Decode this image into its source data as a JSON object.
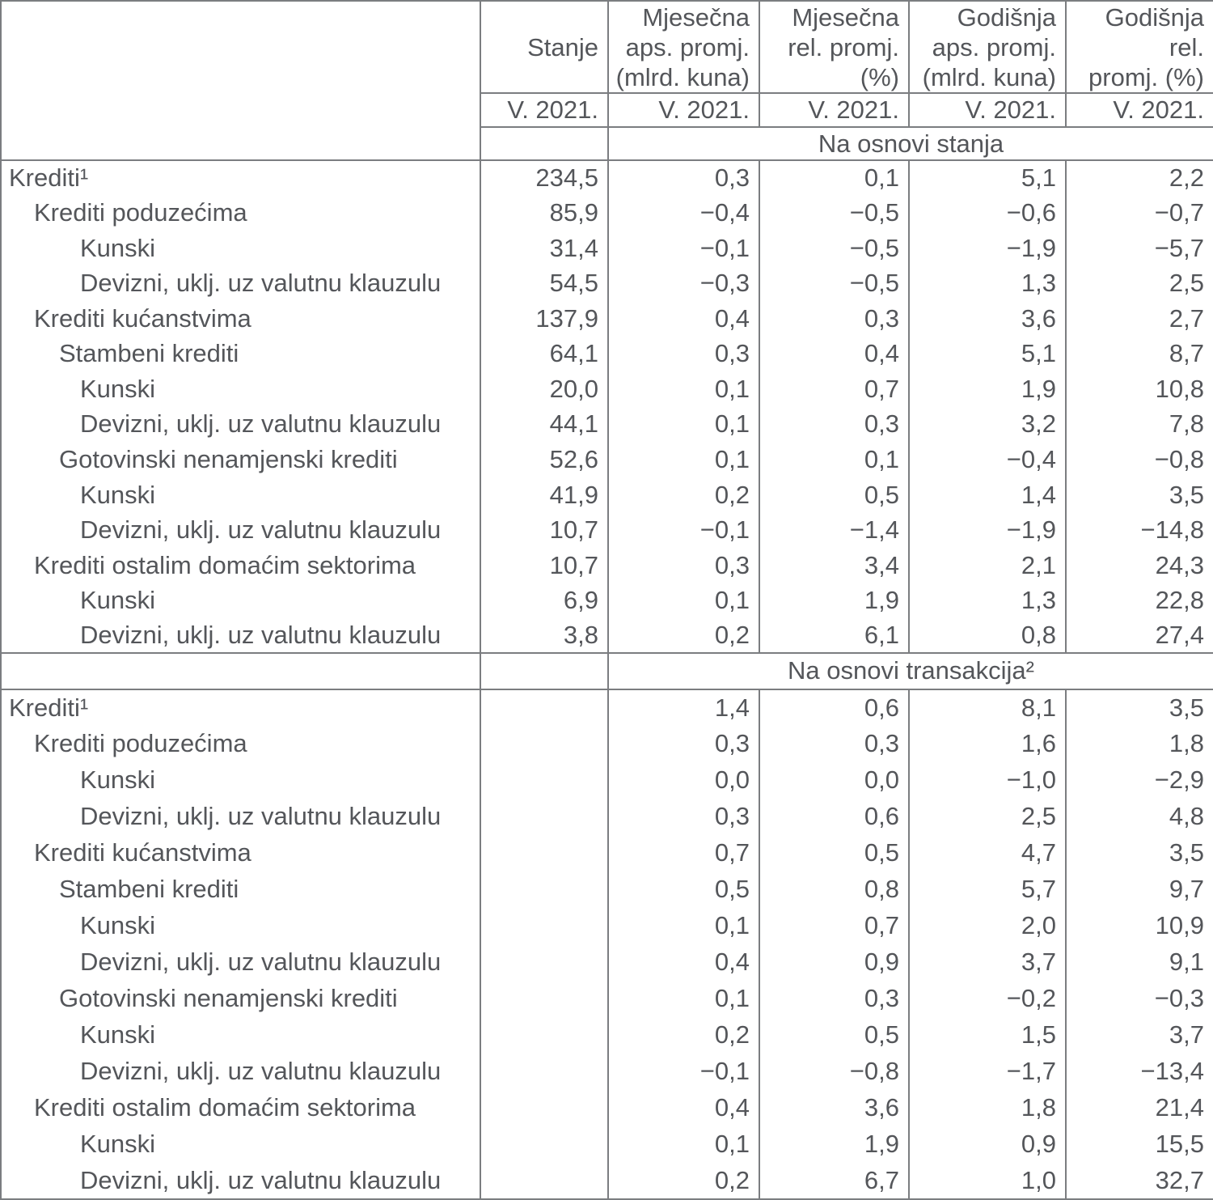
{
  "colors": {
    "text": "#54565a",
    "border": "#7b7d80",
    "background": "#ffffff"
  },
  "table": {
    "columns": [
      {
        "title": "Stanje",
        "period": "V. 2021."
      },
      {
        "title": "Mjesečna\naps. promj.\n(mlrd. kuna)",
        "period": "V. 2021."
      },
      {
        "title": "Mjesečna\nrel. promj.\n(%)",
        "period": "V. 2021."
      },
      {
        "title": "Godišnja\naps. promj.\n(mlrd. kuna)",
        "period": "V. 2021."
      },
      {
        "title": "Godišnja rel.\npromj. (%)",
        "period": "V. 2021."
      }
    ],
    "sections": [
      {
        "title": "Na osnovi stanja",
        "rows": [
          {
            "label": "Krediti¹",
            "indent": 0,
            "values": [
              "234,5",
              "0,3",
              "0,1",
              "5,1",
              "2,2"
            ]
          },
          {
            "label": "Krediti poduzećima",
            "indent": 1,
            "values": [
              "85,9",
              "−0,4",
              "−0,5",
              "−0,6",
              "−0,7"
            ]
          },
          {
            "label": "Kunski",
            "indent": 3,
            "values": [
              "31,4",
              "−0,1",
              "−0,5",
              "−1,9",
              "−5,7"
            ]
          },
          {
            "label": "Devizni, uklj. uz valutnu klauzulu",
            "indent": 3,
            "values": [
              "54,5",
              "−0,3",
              "−0,5",
              "1,3",
              "2,5"
            ]
          },
          {
            "label": "Krediti kućanstvima",
            "indent": 1,
            "values": [
              "137,9",
              "0,4",
              "0,3",
              "3,6",
              "2,7"
            ]
          },
          {
            "label": "Stambeni krediti",
            "indent": 2,
            "values": [
              "64,1",
              "0,3",
              "0,4",
              "5,1",
              "8,7"
            ]
          },
          {
            "label": "Kunski",
            "indent": 3,
            "values": [
              "20,0",
              "0,1",
              "0,7",
              "1,9",
              "10,8"
            ]
          },
          {
            "label": "Devizni, uklj. uz valutnu klauzulu",
            "indent": 3,
            "values": [
              "44,1",
              "0,1",
              "0,3",
              "3,2",
              "7,8"
            ]
          },
          {
            "label": "Gotovinski nenamjenski krediti",
            "indent": 2,
            "values": [
              "52,6",
              "0,1",
              "0,1",
              "−0,4",
              "−0,8"
            ]
          },
          {
            "label": "Kunski",
            "indent": 3,
            "values": [
              "41,9",
              "0,2",
              "0,5",
              "1,4",
              "3,5"
            ]
          },
          {
            "label": "Devizni, uklj. uz valutnu klauzulu",
            "indent": 3,
            "values": [
              "10,7",
              "−0,1",
              "−1,4",
              "−1,9",
              "−14,8"
            ]
          },
          {
            "label": "Krediti ostalim domaćim sektorima",
            "indent": 1,
            "values": [
              "10,7",
              "0,3",
              "3,4",
              "2,1",
              "24,3"
            ]
          },
          {
            "label": "Kunski",
            "indent": 3,
            "values": [
              "6,9",
              "0,1",
              "1,9",
              "1,3",
              "22,8"
            ]
          },
          {
            "label": "Devizni, uklj. uz valutnu klauzulu",
            "indent": 3,
            "values": [
              "3,8",
              "0,2",
              "6,1",
              "0,8",
              "27,4"
            ]
          }
        ]
      },
      {
        "title": "Na osnovi transakcija²",
        "rows": [
          {
            "label": "Krediti¹",
            "indent": 0,
            "values": [
              "",
              "1,4",
              "0,6",
              "8,1",
              "3,5"
            ]
          },
          {
            "label": "Krediti poduzećima",
            "indent": 1,
            "values": [
              "",
              "0,3",
              "0,3",
              "1,6",
              "1,8"
            ]
          },
          {
            "label": "Kunski",
            "indent": 3,
            "values": [
              "",
              "0,0",
              "0,0",
              "−1,0",
              "−2,9"
            ]
          },
          {
            "label": "Devizni, uklj. uz valutnu klauzulu",
            "indent": 3,
            "values": [
              "",
              "0,3",
              "0,6",
              "2,5",
              "4,8"
            ]
          },
          {
            "label": "Krediti kućanstvima",
            "indent": 1,
            "values": [
              "",
              "0,7",
              "0,5",
              "4,7",
              "3,5"
            ]
          },
          {
            "label": "Stambeni krediti",
            "indent": 2,
            "values": [
              "",
              "0,5",
              "0,8",
              "5,7",
              "9,7"
            ]
          },
          {
            "label": "Kunski",
            "indent": 3,
            "values": [
              "",
              "0,1",
              "0,7",
              "2,0",
              "10,9"
            ]
          },
          {
            "label": "Devizni, uklj. uz valutnu klauzulu",
            "indent": 3,
            "values": [
              "",
              "0,4",
              "0,9",
              "3,7",
              "9,1"
            ]
          },
          {
            "label": "Gotovinski nenamjenski krediti",
            "indent": 2,
            "values": [
              "",
              "0,1",
              "0,3",
              "−0,2",
              "−0,3"
            ]
          },
          {
            "label": "Kunski",
            "indent": 3,
            "values": [
              "",
              "0,2",
              "0,5",
              "1,5",
              "3,7"
            ]
          },
          {
            "label": "Devizni, uklj. uz valutnu klauzulu",
            "indent": 3,
            "values": [
              "",
              "−0,1",
              "−0,8",
              "−1,7",
              "−13,4"
            ]
          },
          {
            "label": "Krediti ostalim domaćim sektorima",
            "indent": 1,
            "values": [
              "",
              "0,4",
              "3,6",
              "1,8",
              "21,4"
            ]
          },
          {
            "label": "Kunski",
            "indent": 3,
            "values": [
              "",
              "0,1",
              "1,9",
              "0,9",
              "15,5"
            ]
          },
          {
            "label": "Devizni, uklj. uz valutnu klauzulu",
            "indent": 3,
            "values": [
              "",
              "0,2",
              "6,7",
              "1,0",
              "32,7"
            ]
          }
        ]
      }
    ]
  }
}
